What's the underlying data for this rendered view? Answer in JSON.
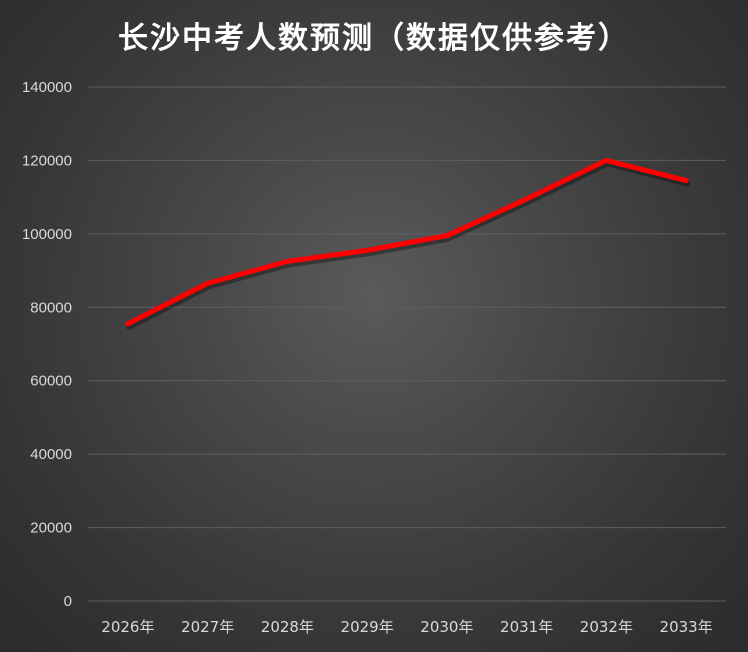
{
  "chart_data": {
    "type": "line",
    "title": "长沙中考人数预测（数据仅供参考）",
    "xlabel": "",
    "ylabel": "",
    "categories": [
      "2026年",
      "2027年",
      "2028年",
      "2029年",
      "2030年",
      "2031年",
      "2032年",
      "2033年"
    ],
    "series": [
      {
        "values": [
          75500,
          86500,
          92500,
          95500,
          99500,
          109500,
          120000,
          114500
        ],
        "color": "#ff0000"
      }
    ],
    "ylim": [
      0,
      140000
    ],
    "yticks": [
      0,
      20000,
      40000,
      60000,
      80000,
      100000,
      120000,
      140000
    ],
    "grid": true,
    "legend": "none"
  },
  "colors": {
    "gridline": "#5f5f5f",
    "tick_text": "#d9d9d9",
    "title_text": "#ffffff"
  }
}
